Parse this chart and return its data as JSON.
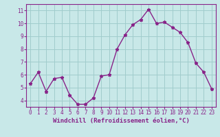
{
  "x": [
    0,
    1,
    2,
    3,
    4,
    5,
    6,
    7,
    8,
    9,
    10,
    11,
    12,
    13,
    14,
    15,
    16,
    17,
    18,
    19,
    20,
    21,
    22,
    23
  ],
  "y": [
    5.3,
    6.2,
    4.7,
    5.7,
    5.8,
    4.4,
    3.7,
    3.7,
    4.2,
    5.9,
    6.0,
    8.0,
    9.1,
    9.9,
    10.3,
    11.1,
    10.0,
    10.1,
    9.7,
    9.3,
    8.5,
    6.9,
    6.2,
    4.9
  ],
  "line_color": "#882288",
  "marker": "*",
  "bg_color": "#c8e8e8",
  "grid_color": "#a0cccc",
  "xlabel": "Windchill (Refroidissement éolien,°C)",
  "ylim": [
    3.5,
    11.5
  ],
  "xlim": [
    -0.5,
    23.5
  ],
  "yticks": [
    4,
    5,
    6,
    7,
    8,
    9,
    10,
    11
  ],
  "xticks": [
    0,
    1,
    2,
    3,
    4,
    5,
    6,
    7,
    8,
    9,
    10,
    11,
    12,
    13,
    14,
    15,
    16,
    17,
    18,
    19,
    20,
    21,
    22,
    23
  ],
  "xtick_labels": [
    "0",
    "1",
    "2",
    "3",
    "4",
    "5",
    "6",
    "7",
    "8",
    "9",
    "10",
    "11",
    "12",
    "13",
    "14",
    "15",
    "16",
    "17",
    "18",
    "19",
    "20",
    "21",
    "22",
    "23"
  ],
  "tick_color": "#882288",
  "axis_color": "#882288",
  "label_fontsize": 6.5,
  "tick_fontsize": 5.5
}
